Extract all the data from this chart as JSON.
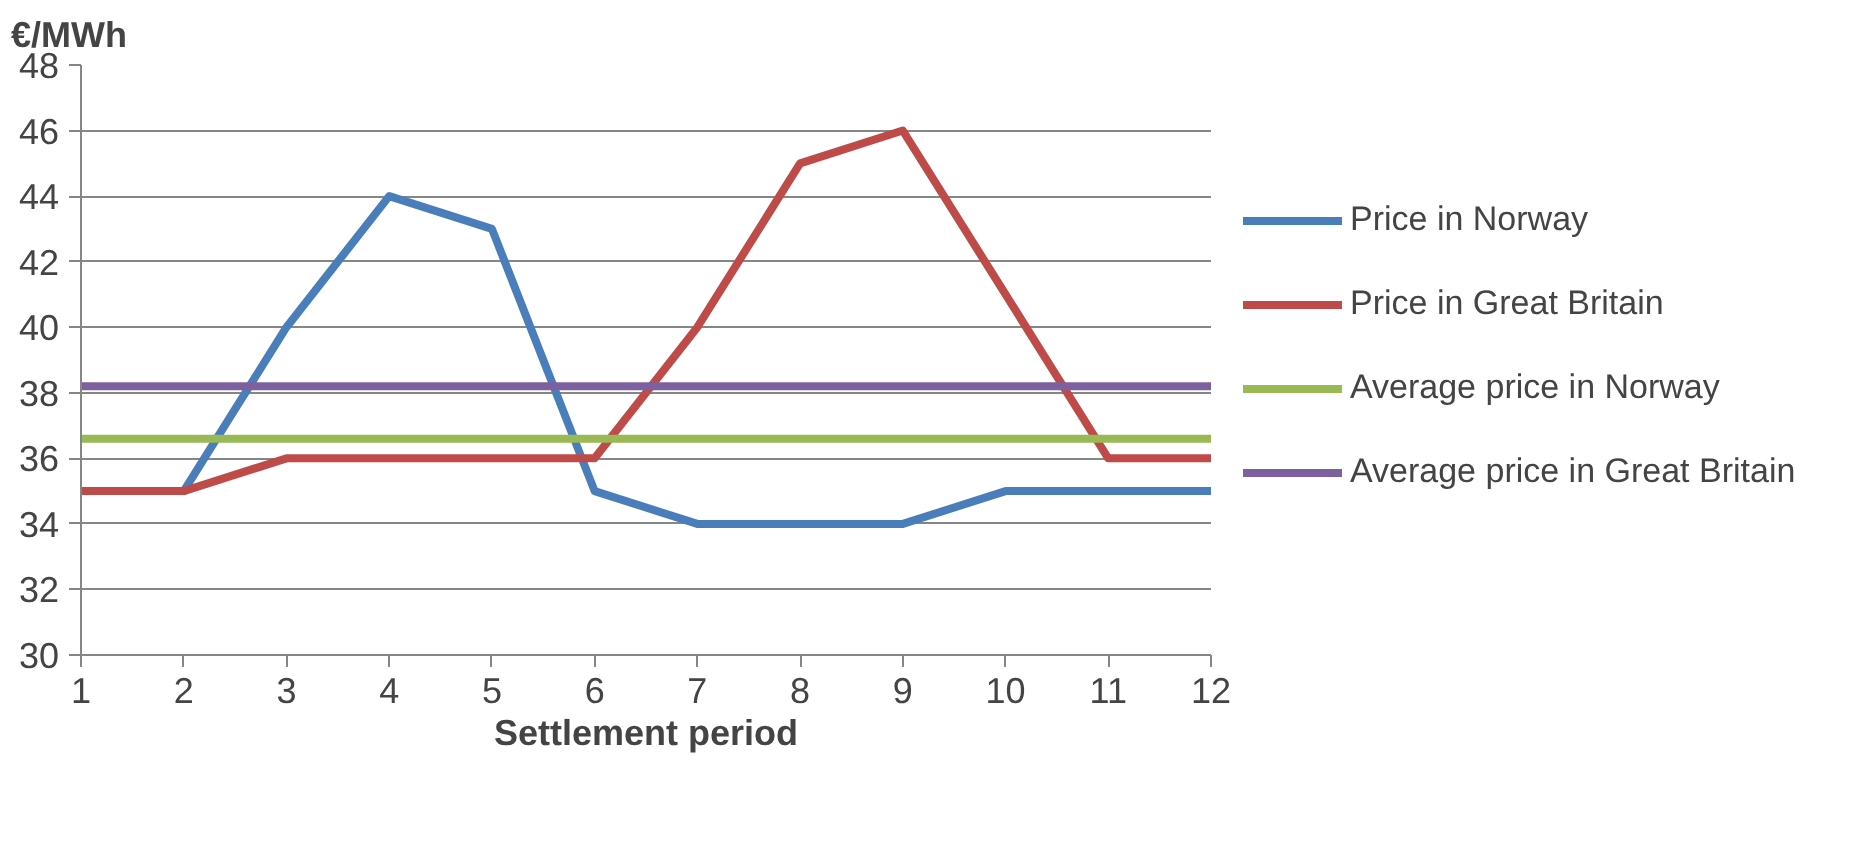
{
  "chart_data": {
    "type": "line",
    "ylabel": "€/MWh",
    "xlabel": "Settlement period",
    "x": [
      1,
      2,
      3,
      4,
      5,
      6,
      7,
      8,
      9,
      10,
      11,
      12
    ],
    "series": [
      {
        "name": "Price in Norway",
        "color": "#4a7ebb",
        "values": [
          35,
          35,
          40,
          44,
          43,
          35,
          34,
          34,
          34,
          35,
          35,
          35
        ]
      },
      {
        "name": "Price in Great Britain",
        "color": "#be4b48",
        "values": [
          35,
          35,
          36,
          36,
          36,
          36,
          40,
          45,
          46,
          41,
          36,
          36
        ]
      },
      {
        "name": "Average price in Norway",
        "color": "#98b954",
        "values": [
          36.6,
          36.6,
          36.6,
          36.6,
          36.6,
          36.6,
          36.6,
          36.6,
          36.6,
          36.6,
          36.6,
          36.6
        ]
      },
      {
        "name": "Average price in Great Britain",
        "color": "#7d60a0",
        "values": [
          38.2,
          38.2,
          38.2,
          38.2,
          38.2,
          38.2,
          38.2,
          38.2,
          38.2,
          38.2,
          38.2,
          38.2
        ]
      }
    ],
    "xlim": [
      1,
      12
    ],
    "xticks": [
      1,
      2,
      3,
      4,
      5,
      6,
      7,
      8,
      9,
      10,
      11,
      12
    ],
    "ylim": [
      30,
      48
    ],
    "yticks": [
      30,
      32,
      34,
      36,
      38,
      40,
      42,
      44,
      46,
      48
    ],
    "grid": "y",
    "legend": "right",
    "marker": "none",
    "line_style": "solid"
  }
}
